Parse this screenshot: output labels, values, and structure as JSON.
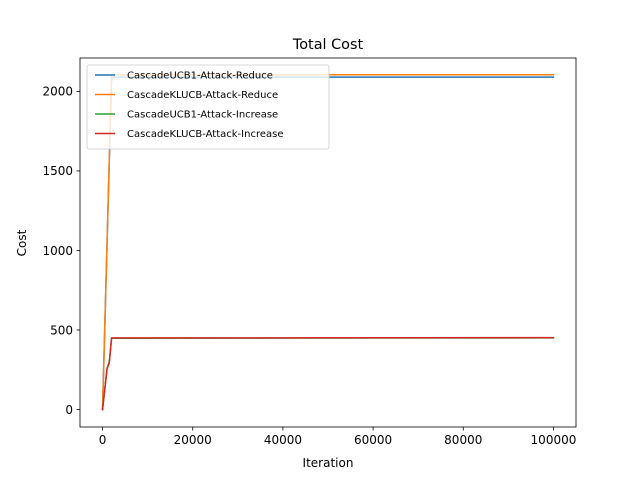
{
  "chart_data": {
    "type": "line",
    "title": "Total Cost",
    "xlabel": "Iteration",
    "ylabel": "Cost",
    "xlim": [
      -5000,
      105000
    ],
    "ylim": [
      -110,
      2210
    ],
    "xticks": [
      0,
      20000,
      40000,
      60000,
      80000,
      100000
    ],
    "yticks": [
      0,
      500,
      1000,
      1500,
      2000
    ],
    "grid": false,
    "legend": "top-left",
    "series": [
      {
        "name": "CascadeUCB1-Attack-Reduce",
        "color": "#1f77b4",
        "x": [
          0,
          2000,
          100000
        ],
        "y": [
          0,
          2090,
          2090
        ]
      },
      {
        "name": "CascadeKLUCB-Attack-Reduce",
        "color": "#ff7f0e",
        "x": [
          0,
          2000,
          100000
        ],
        "y": [
          0,
          2105,
          2105
        ]
      },
      {
        "name": "CascadeUCB1-Attack-Increase",
        "color": "#2ca02c",
        "x": [
          0,
          1000,
          1500,
          2000,
          100000
        ],
        "y": [
          0,
          260,
          300,
          448,
          450
        ]
      },
      {
        "name": "CascadeKLUCB-Attack-Increase",
        "color": "#d62728",
        "x": [
          0,
          1000,
          1500,
          2000,
          100000
        ],
        "y": [
          0,
          255,
          295,
          450,
          452
        ]
      }
    ]
  }
}
